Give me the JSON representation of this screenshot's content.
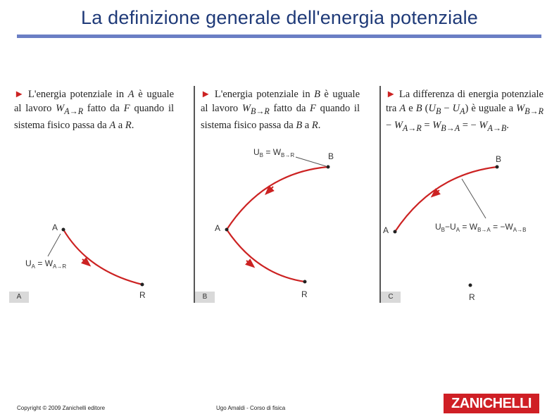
{
  "title": "La definizione generale dell'energia potenziale",
  "panels": [
    {
      "tag": "A",
      "text_arrow": "►",
      "text_parts": [
        "L'energia potenziale in ",
        "A",
        " è uguale al lavoro ",
        "W",
        "A→R",
        " fatto da ",
        "F",
        " quando il sistema fisico passa da ",
        "A",
        " a ",
        "R",
        "."
      ],
      "label_A": "A",
      "label_R": "R",
      "formula_lhs": "U",
      "formula_lhs_sub": "A",
      "formula_eq": " = W",
      "formula_rhs_sub": "A→R"
    },
    {
      "tag": "B",
      "text_arrow": "►",
      "text_parts": [
        "L'energia potenziale in ",
        "B",
        " è uguale al lavoro ",
        "W",
        "B→R",
        " fatto da ",
        "F",
        " quando il sistema fisico passa da ",
        "B",
        " a ",
        "R",
        "."
      ],
      "label_A": "A",
      "label_B": "B",
      "label_R": "R",
      "formula_lhs": "U",
      "formula_lhs_sub": "B",
      "formula_eq": " = W",
      "formula_rhs_sub": "B→R"
    },
    {
      "tag": "C",
      "text_arrow": "►",
      "text_parts": [
        "La differenza di energia potenziale tra ",
        "A",
        " e ",
        "B",
        " (",
        "U",
        "B",
        " − ",
        "U",
        "A",
        ") è uguale a ",
        "W",
        "B→R",
        " − ",
        "W",
        "A→R",
        " = ",
        "W",
        "B→A",
        " = − ",
        "W",
        "A→B",
        "."
      ],
      "label_A": "A",
      "label_B": "B",
      "label_R": "R",
      "formula": "U",
      "formula_sub1": "B",
      "formula_mid1": "−U",
      "formula_sub2": "A",
      "formula_mid2": " = W",
      "formula_sub3": "B→A",
      "formula_mid3": " = −W",
      "formula_sub4": "A→B"
    }
  ],
  "footer": {
    "copyright": "Copyright © 2009 Zanichelli editore",
    "course": "Ugo Amaldi - Corso di fisica",
    "logo": "ZANICHELLI"
  },
  "colors": {
    "title": "#1f3a78",
    "curve": "#cc2222",
    "rule": "#6b7fc4",
    "logo": "#cf1f25"
  }
}
